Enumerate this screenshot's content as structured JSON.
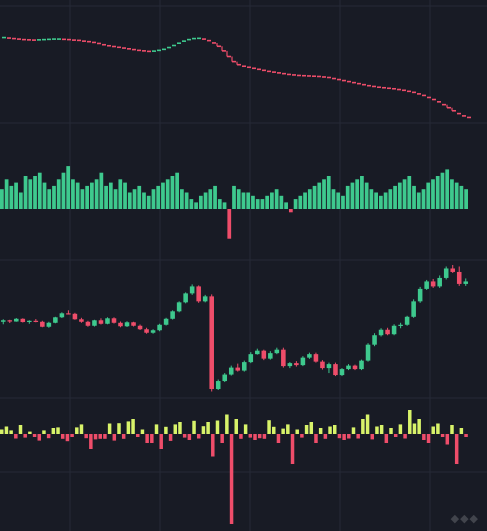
{
  "colors": {
    "background": "#181b25",
    "grid": "#262a36",
    "up": "#3ec98e",
    "down": "#ee4d6a",
    "bright": "#d8f36a",
    "watermark": "#ffffff"
  },
  "watermark_icon": "brand-watermark-icon",
  "chart_data": [
    {
      "type": "line",
      "panel": "price-dashes",
      "x": [
        0,
        5,
        10,
        15,
        20,
        25,
        30,
        35,
        40,
        45,
        50,
        55,
        60,
        65,
        70,
        75,
        80,
        85,
        90,
        95,
        100,
        105,
        110,
        115,
        120,
        125,
        130,
        135,
        140,
        145,
        150,
        155,
        160,
        165,
        170,
        175,
        180,
        185,
        190,
        195,
        200,
        205,
        210,
        215,
        220,
        225,
        230,
        235,
        240,
        245,
        250,
        255,
        260,
        265,
        270,
        275,
        280,
        285,
        290,
        295,
        300,
        305,
        310,
        315,
        320,
        325,
        330,
        335,
        340,
        345,
        350,
        355,
        360,
        365,
        370,
        375,
        380,
        385,
        390,
        395,
        400,
        405,
        410,
        415,
        420,
        425,
        430,
        435,
        440,
        445,
        450,
        455,
        460,
        465
      ],
      "values": [
        100.4,
        100.2,
        100.0,
        99.8,
        99.6,
        99.5,
        99.4,
        99.5,
        99.6,
        99.7,
        99.8,
        99.8,
        99.7,
        99.6,
        99.4,
        99.3,
        99.0,
        98.8,
        98.5,
        98.1,
        97.6,
        97.2,
        96.9,
        96.6,
        96.3,
        96.0,
        95.7,
        95.4,
        95.2,
        95.0,
        95.1,
        95.4,
        95.8,
        96.5,
        97.3,
        98.2,
        99.0,
        99.6,
        100.0,
        100.1,
        99.8,
        99.2,
        98.3,
        97.0,
        95.2,
        93.0,
        91.0,
        89.8,
        89.2,
        88.8,
        88.4,
        88.0,
        87.6,
        87.2,
        86.9,
        86.6,
        86.3,
        86.0,
        85.8,
        85.6,
        85.5,
        85.4,
        85.3,
        85.2,
        85.0,
        84.8,
        84.4,
        84.0,
        83.6,
        83.2,
        82.8,
        82.4,
        82.0,
        81.6,
        81.3,
        81.0,
        80.8,
        80.6,
        80.4,
        80.1,
        79.8,
        79.4,
        79.0,
        78.4,
        77.8,
        77.0,
        76.2,
        75.3,
        74.2,
        73.0,
        71.8,
        70.7,
        69.8,
        69.2
      ]
    },
    {
      "type": "bar",
      "panel": "volume-histogram",
      "values": [
        6,
        9,
        7,
        8,
        5,
        10,
        9,
        10,
        11,
        8,
        6,
        7,
        9,
        11,
        13,
        9,
        8,
        6,
        7,
        8,
        9,
        11,
        7,
        8,
        6,
        9,
        8,
        5,
        6,
        7,
        5,
        4,
        6,
        7,
        8,
        9,
        10,
        11,
        6,
        5,
        3,
        2,
        4,
        5,
        6,
        7,
        3,
        2,
        -9,
        7,
        6,
        5,
        5,
        4,
        3,
        3,
        4,
        5,
        6,
        4,
        2,
        -1,
        3,
        4,
        5,
        6,
        7,
        8,
        9,
        10,
        6,
        5,
        4,
        7,
        8,
        9,
        10,
        8,
        6,
        5,
        4,
        5,
        6,
        7,
        8,
        9,
        10,
        7,
        5,
        6,
        8,
        9,
        10,
        11,
        12,
        9,
        8,
        7,
        6
      ],
      "ylim": [
        -14,
        16
      ]
    },
    {
      "type": "candlestick",
      "panel": "candles",
      "values": [
        [
          104,
          105,
          103,
          104.6
        ],
        [
          104.6,
          104.8,
          103.5,
          104.1
        ],
        [
          104.1,
          105.5,
          104.0,
          105.2
        ],
        [
          105.2,
          105.4,
          103.7,
          103.9
        ],
        [
          103.9,
          104.6,
          103.2,
          104.4
        ],
        [
          104.4,
          105.1,
          103.8,
          104.0
        ],
        [
          104.0,
          104.4,
          101.8,
          102.0
        ],
        [
          102.0,
          104.0,
          101.6,
          103.6
        ],
        [
          103.6,
          106.0,
          103.4,
          105.8
        ],
        [
          105.8,
          107.8,
          105.5,
          107.4
        ],
        [
          107.4,
          108.6,
          106.9,
          107.2
        ],
        [
          107.2,
          107.6,
          104.8,
          105.0
        ],
        [
          105.0,
          105.6,
          103.6,
          104.0
        ],
        [
          104.0,
          104.4,
          102.0,
          102.4
        ],
        [
          102.4,
          104.8,
          102.1,
          104.6
        ],
        [
          104.6,
          105.4,
          102.9,
          103.2
        ],
        [
          103.2,
          105.8,
          103.0,
          105.4
        ],
        [
          105.4,
          105.8,
          103.3,
          103.6
        ],
        [
          103.6,
          104.1,
          101.8,
          102.2
        ],
        [
          102.2,
          104.2,
          101.9,
          103.8
        ],
        [
          103.8,
          104.0,
          102.1,
          102.4
        ],
        [
          102.4,
          102.9,
          100.7,
          101.0
        ],
        [
          101.0,
          101.6,
          99.2,
          99.6
        ],
        [
          99.6,
          101.0,
          99.2,
          100.6
        ],
        [
          100.6,
          103.2,
          100.2,
          102.8
        ],
        [
          102.8,
          105.6,
          102.5,
          105.2
        ],
        [
          105.2,
          108.6,
          104.9,
          108.2
        ],
        [
          108.2,
          112.2,
          107.8,
          111.8
        ],
        [
          111.8,
          115.8,
          111.4,
          115.4
        ],
        [
          115.4,
          119.0,
          114.8,
          118.2
        ],
        [
          118.2,
          118.6,
          111.6,
          112.2
        ],
        [
          112.2,
          114.8,
          111.8,
          114.2
        ],
        [
          114.2,
          115.0,
          76.0,
          77.0
        ],
        [
          77.0,
          80.8,
          76.6,
          80.2
        ],
        [
          80.2,
          83.4,
          79.8,
          82.8
        ],
        [
          82.8,
          86.4,
          82.4,
          85.6
        ],
        [
          85.6,
          87.2,
          84.0,
          84.4
        ],
        [
          84.4,
          88.4,
          84.0,
          87.8
        ],
        [
          87.8,
          91.8,
          87.4,
          91.0
        ],
        [
          91.0,
          93.2,
          90.8,
          92.4
        ],
        [
          92.4,
          92.8,
          88.6,
          89.2
        ],
        [
          89.2,
          92.2,
          88.8,
          91.4
        ],
        [
          91.4,
          93.6,
          91.0,
          92.8
        ],
        [
          92.8,
          93.6,
          85.6,
          86.2
        ],
        [
          86.2,
          87.8,
          85.4,
          87.4
        ],
        [
          87.4,
          88.2,
          86.0,
          86.6
        ],
        [
          86.6,
          90.2,
          86.2,
          89.6
        ],
        [
          89.6,
          91.6,
          89.1,
          91.0
        ],
        [
          91.0,
          91.6,
          87.6,
          88.0
        ],
        [
          88.0,
          88.6,
          84.8,
          85.4
        ],
        [
          85.4,
          87.6,
          83.4,
          87.0
        ],
        [
          87.0,
          87.6,
          82.2,
          82.6
        ],
        [
          82.6,
          85.4,
          82.2,
          85.0
        ],
        [
          85.0,
          87.0,
          84.6,
          86.4
        ],
        [
          86.4,
          86.8,
          84.6,
          85.0
        ],
        [
          85.0,
          88.8,
          84.6,
          88.4
        ],
        [
          88.4,
          95.4,
          88.0,
          94.8
        ],
        [
          94.8,
          99.4,
          94.2,
          98.6
        ],
        [
          98.6,
          101.4,
          98.1,
          100.8
        ],
        [
          100.8,
          101.6,
          98.6,
          99.0
        ],
        [
          99.0,
          103.0,
          98.6,
          102.4
        ],
        [
          102.4,
          103.6,
          101.4,
          102.8
        ],
        [
          102.8,
          106.4,
          102.4,
          106.0
        ],
        [
          106.0,
          113.0,
          105.6,
          112.2
        ],
        [
          112.2,
          118.0,
          111.6,
          117.2
        ],
        [
          117.2,
          120.8,
          116.8,
          120.2
        ],
        [
          120.2,
          121.2,
          117.6,
          118.2
        ],
        [
          118.2,
          122.6,
          117.6,
          121.6
        ],
        [
          121.6,
          126.2,
          121.0,
          125.4
        ],
        [
          125.4,
          126.8,
          123.6,
          124.0
        ],
        [
          124.0,
          126.2,
          118.4,
          119.2
        ],
        [
          119.2,
          121.4,
          118.4,
          120.2
        ]
      ],
      "ylim": [
        75,
        128
      ]
    },
    {
      "type": "bar",
      "panel": "oscillator",
      "values": [
        1.5,
        2.5,
        1.2,
        -1.5,
        3.0,
        -1.2,
        0.8,
        -1.0,
        -2.2,
        1.2,
        -1.4,
        2.0,
        2.2,
        -1.6,
        -2.4,
        -1.0,
        2.2,
        3.2,
        -1.4,
        -5.0,
        -1.8,
        -1.6,
        -1.6,
        3.5,
        -2.2,
        3.6,
        -1.6,
        4.2,
        5.0,
        -1.0,
        1.5,
        -3.0,
        -3.0,
        3.2,
        -5.0,
        2.4,
        -2.3,
        3.2,
        4.0,
        -1.2,
        -2.0,
        4.4,
        -1.5,
        2.6,
        4.0,
        -7.5,
        4.5,
        -3.0,
        6.5,
        -30.0,
        5.0,
        -1.6,
        3.2,
        -1.2,
        -2.0,
        -1.4,
        -1.6,
        4.6,
        2.4,
        -3.0,
        1.8,
        3.2,
        -10.0,
        1.5,
        -1.2,
        3.0,
        4.0,
        -3.0,
        2.0,
        -1.6,
        2.5,
        3.0,
        -1.4,
        -2.0,
        -1.5,
        2.2,
        -1.5,
        5.0,
        6.5,
        -1.8,
        2.5,
        3.0,
        -3.0,
        2.0,
        -1.0,
        3.2,
        -1.5,
        8.0,
        3.5,
        5.0,
        -2.0,
        -3.0,
        2.5,
        3.5,
        -1.0,
        -3.5,
        3.0,
        -10.0,
        2.0,
        -1.0
      ],
      "ylim": [
        -32,
        9
      ]
    }
  ]
}
